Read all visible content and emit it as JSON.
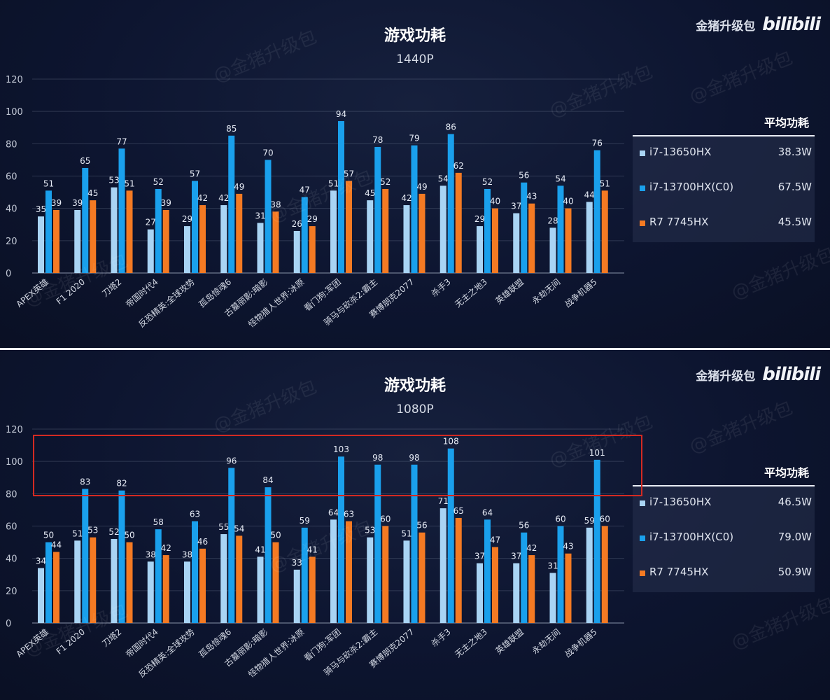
{
  "brand": {
    "name": "金猪升级包",
    "logo_text": "bilibili"
  },
  "watermark": "@金猪升级包",
  "colors": {
    "i7_13650hx": "#a9d4f4",
    "i7_13700hx": "#1aa0ec",
    "r7_7745hx": "#f47a23",
    "highlight": "#d42a22"
  },
  "chart_data": [
    {
      "type": "bar",
      "title": "游戏功耗",
      "subtitle": "1440P",
      "ylim": [
        0,
        120
      ],
      "yticks": [
        0,
        20,
        40,
        60,
        80,
        100,
        120
      ],
      "categories": [
        "APEX英雄",
        "F1 2020",
        "刀塔2",
        "帝国时代4",
        "反恐精英:全球攻势",
        "孤岛惊魂6",
        "古墓丽影:暗影",
        "怪物猎人世界:冰原",
        "看门狗:军团",
        "骑马与砍杀2:霸主",
        "赛博朋克2077",
        "杀手3",
        "无主之地3",
        "英雄联盟",
        "永劫无间",
        "战争机器5"
      ],
      "series": [
        {
          "name": "i7-13650HX",
          "values": [
            35,
            39,
            53,
            27,
            29,
            42,
            31,
            26,
            51,
            45,
            42,
            54,
            29,
            37,
            28,
            44
          ]
        },
        {
          "name": "i7-13700HX(C0)",
          "values": [
            51,
            65,
            77,
            52,
            57,
            85,
            70,
            47,
            94,
            78,
            79,
            86,
            52,
            56,
            54,
            76
          ]
        },
        {
          "name": "R7 7745HX",
          "values": [
            39,
            45,
            51,
            39,
            42,
            49,
            38,
            29,
            57,
            52,
            49,
            62,
            40,
            43,
            40,
            51
          ]
        }
      ],
      "legend_title": "平均功耗",
      "averages": [
        "38.3W",
        "67.5W",
        "45.5W"
      ]
    },
    {
      "type": "bar",
      "title": "游戏功耗",
      "subtitle": "1080P",
      "ylim": [
        0,
        120
      ],
      "yticks": [
        0,
        20,
        40,
        60,
        80,
        100,
        120
      ],
      "categories": [
        "APEX英雄",
        "F1 2020",
        "刀塔2",
        "帝国时代4",
        "反恐精英:全球攻势",
        "孤岛惊魂6",
        "古墓丽影:暗影",
        "怪物猎人世界:冰原",
        "看门狗:军团",
        "骑马与砍杀2:霸主",
        "赛博朋克2077",
        "杀手3",
        "无主之地3",
        "英雄联盟",
        "永劫无间",
        "战争机器5"
      ],
      "series": [
        {
          "name": "i7-13650HX",
          "values": [
            34,
            51,
            52,
            38,
            38,
            55,
            41,
            33,
            64,
            53,
            51,
            71,
            37,
            37,
            31,
            59
          ]
        },
        {
          "name": "i7-13700HX(C0)",
          "values": [
            50,
            83,
            82,
            58,
            63,
            96,
            84,
            59,
            103,
            98,
            98,
            108,
            64,
            56,
            60,
            101
          ]
        },
        {
          "name": "R7 7745HX",
          "values": [
            44,
            53,
            50,
            42,
            46,
            54,
            50,
            41,
            63,
            60,
            56,
            65,
            47,
            42,
            43,
            60
          ]
        }
      ],
      "legend_title": "平均功耗",
      "averages": [
        "46.5W",
        "79.0W",
        "50.9W"
      ]
    }
  ]
}
